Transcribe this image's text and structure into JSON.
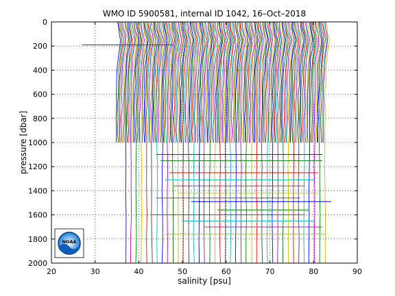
{
  "chart_data": {
    "type": "line",
    "title": "WMO ID 5900581, internal ID 1042, 16–Oct–2018",
    "xlabel": "salinity [psu]",
    "ylabel": "pressure [dbar]",
    "xlim": [
      20,
      90
    ],
    "ylim": [
      0,
      2000
    ],
    "y_reversed": true,
    "x_ticks": [
      "20",
      "30",
      "40",
      "50",
      "60",
      "70",
      "80",
      "90"
    ],
    "y_ticks": [
      "0",
      "200",
      "400",
      "600",
      "800",
      "1000",
      "1200",
      "1400",
      "1600",
      "1800",
      "2000"
    ],
    "grid": true,
    "grid_style": "dotted",
    "legend": "none",
    "series_offset_psu": 0.3,
    "n_profiles": 160,
    "profile_colors": [
      "#0000ff",
      "#008000",
      "#ff0000",
      "#00bfbf",
      "#bf00bf",
      "#bfbf00",
      "#404040"
    ],
    "base_profile": {
      "pressure": [
        0,
        50,
        100,
        150,
        200,
        300,
        400,
        500,
        600,
        700,
        800,
        900,
        1000
      ],
      "salinity": [
        35.2,
        35.3,
        35.6,
        35.9,
        35.7,
        35.3,
        35.1,
        35.0,
        34.9,
        34.9,
        34.85,
        34.85,
        34.9
      ]
    },
    "logo_label": "NOAA"
  }
}
